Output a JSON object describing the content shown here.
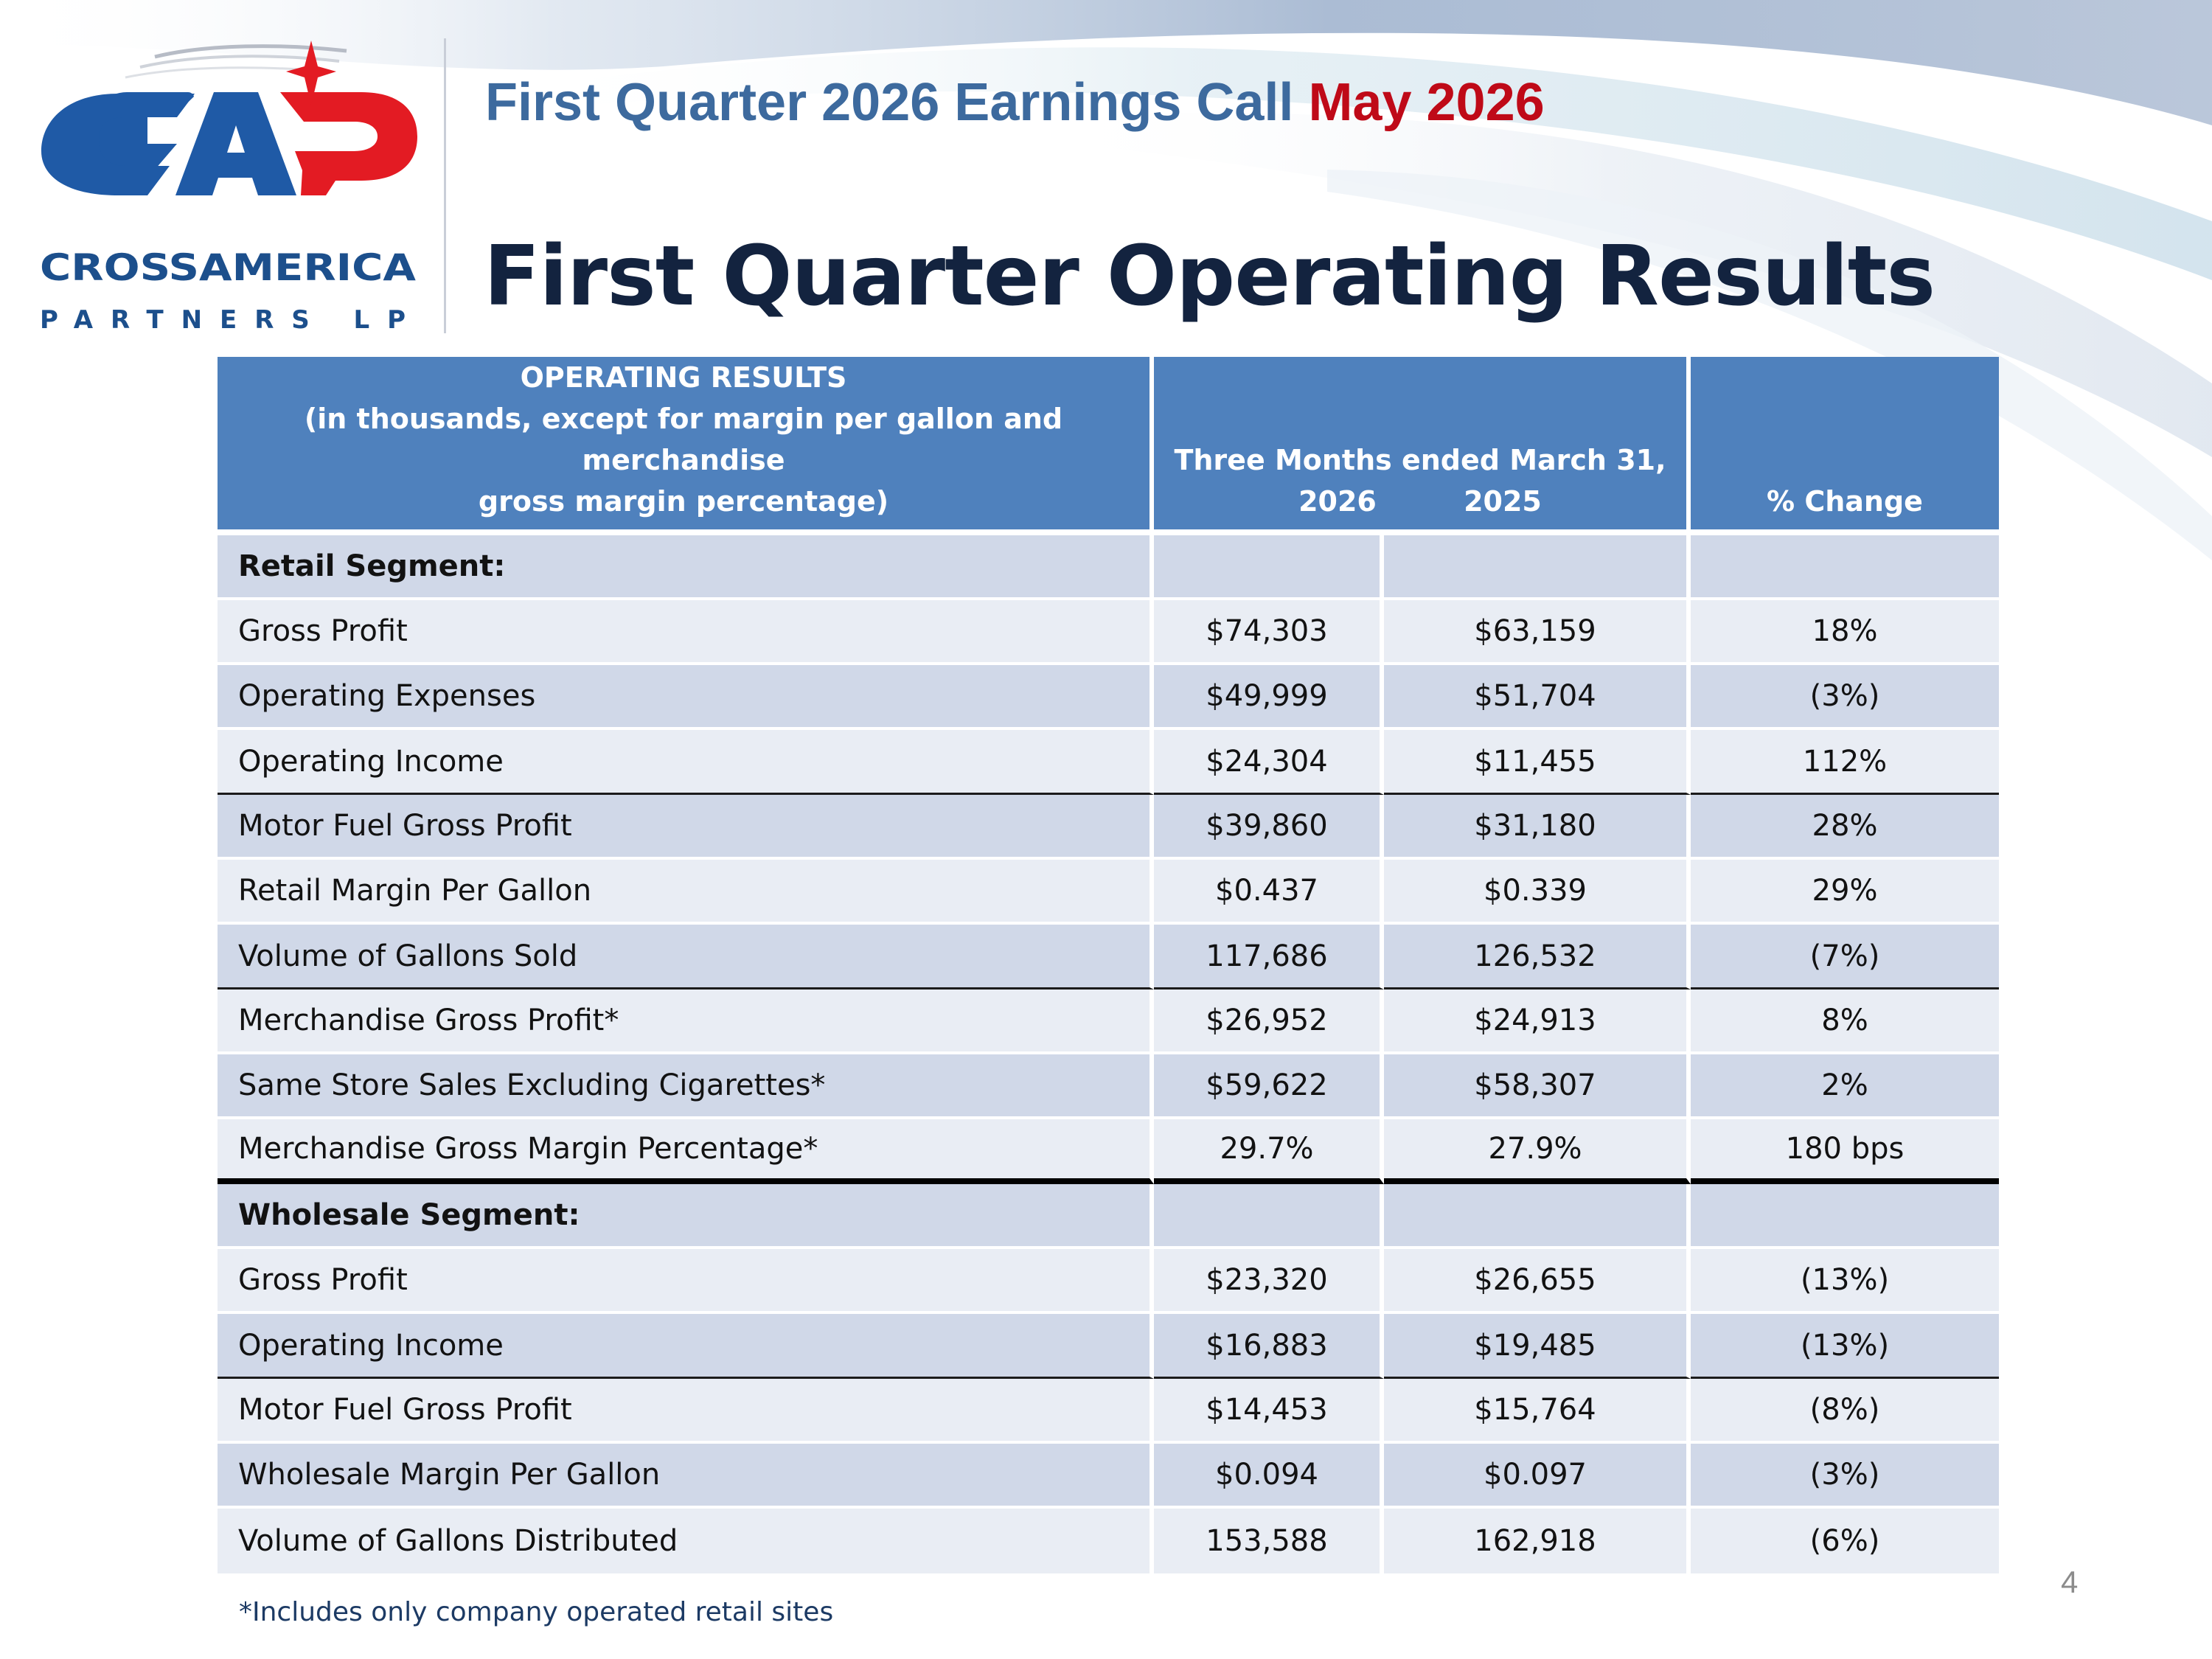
{
  "header": {
    "subtitle_main": "First Quarter 2026 Earnings Call",
    "subtitle_accent": "May 2026",
    "title": "First Quarter Operating Results"
  },
  "logo": {
    "mark": "CAP",
    "company_line1": "CROSSAMERICA",
    "company_line2": "PARTNERS LP",
    "colors": {
      "blue": "#1f5aa6",
      "red": "#e31b23",
      "navy": "#1c4f8c"
    }
  },
  "table": {
    "header": {
      "col1_line1": "OPERATING RESULTS",
      "col1_line2": "(in thousands, except for margin per gallon and merchandise",
      "col1_line3": "gross margin percentage)",
      "period_label": "Three Months ended March 31,",
      "year_a": "2026",
      "year_b": "2025",
      "change_label": "% Change"
    },
    "rows": [
      {
        "label": "Retail Segment:",
        "a": "",
        "b": "",
        "c": ""
      },
      {
        "label": "Gross Profit",
        "a": "$74,303",
        "b": "$63,159",
        "c": "18%"
      },
      {
        "label": "Operating Expenses",
        "a": "$49,999",
        "b": "$51,704",
        "c": "(3%)"
      },
      {
        "label": "Operating Income",
        "a": "$24,304",
        "b": "$11,455",
        "c": "112%"
      },
      {
        "label": "Motor Fuel Gross Profit",
        "a": "$39,860",
        "b": "$31,180",
        "c": "28%"
      },
      {
        "label": "Retail Margin Per Gallon",
        "a": "$0.437",
        "b": "$0.339",
        "c": "29%"
      },
      {
        "label": "Volume of Gallons Sold",
        "a": "117,686",
        "b": "126,532",
        "c": "(7%)"
      },
      {
        "label": "Merchandise Gross Profit*",
        "a": "$26,952",
        "b": "$24,913",
        "c": "8%"
      },
      {
        "label": "Same Store Sales Excluding Cigarettes*",
        "a": "$59,622",
        "b": "$58,307",
        "c": "2%"
      },
      {
        "label": "Merchandise Gross Margin Percentage*",
        "a": "29.7%",
        "b": "27.9%",
        "c": "180 bps"
      },
      {
        "label": "Wholesale Segment:",
        "a": "",
        "b": "",
        "c": ""
      },
      {
        "label": "Gross Profit",
        "a": "$23,320",
        "b": "$26,655",
        "c": "(13%)"
      },
      {
        "label": "Operating Income",
        "a": "$16,883",
        "b": "$19,485",
        "c": "(13%)"
      },
      {
        "label": "Motor Fuel Gross Profit",
        "a": "$14,453",
        "b": "$15,764",
        "c": "(8%)"
      },
      {
        "label": "Wholesale Margin Per Gallon",
        "a": "$0.094",
        "b": "$0.097",
        "c": "(3%)"
      },
      {
        "label": "Volume of Gallons Distributed",
        "a": "153,588",
        "b": "162,918",
        "c": "(6%)"
      }
    ]
  },
  "footnote": "*Includes only company operated retail sites",
  "page_number": "4",
  "colors": {
    "table_header": "#4f81bd",
    "row_dark": "#d0d8e8",
    "row_light": "#e9edf4",
    "subtitle": "#3d6a9e",
    "accent_red": "#bf0a18",
    "title": "#13233f"
  }
}
